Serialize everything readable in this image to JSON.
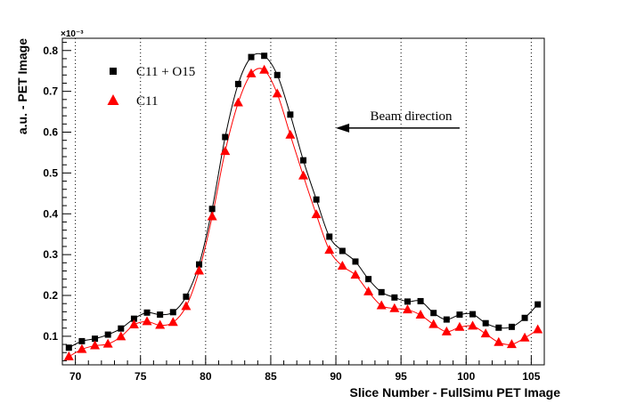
{
  "chart_data": {
    "type": "scatter",
    "title": "",
    "xlabel": "Slice Number - FullSimu PET Image",
    "ylabel": "a.u. - PET Image",
    "y_exponent_label": "×10⁻³",
    "y_scale_factor": 0.001,
    "xlim": [
      69,
      106
    ],
    "ylim": [
      0.03,
      0.83
    ],
    "x_ticks": [
      70,
      75,
      80,
      85,
      90,
      95,
      100,
      105
    ],
    "y_ticks": [
      0.1,
      0.2,
      0.3,
      0.4,
      0.5,
      0.6,
      0.7,
      0.8
    ],
    "y_tick_labels": [
      "0.1",
      "0.2",
      "0.3",
      "0.4",
      "0.5",
      "0.6",
      "0.7",
      "0.8"
    ],
    "grid": "vertical-dotted",
    "legend_position": "top-left",
    "x": [
      69.5,
      70.5,
      71.5,
      72.5,
      73.5,
      74.5,
      75.5,
      76.5,
      77.5,
      78.5,
      79.5,
      80.5,
      81.5,
      82.5,
      83.5,
      84.5,
      85.5,
      86.5,
      87.5,
      88.5,
      89.5,
      90.5,
      91.5,
      92.5,
      93.5,
      94.5,
      95.5,
      96.5,
      97.5,
      98.5,
      99.5,
      100.5,
      101.5,
      102.5,
      103.5,
      104.5,
      105.5
    ],
    "series": [
      {
        "name": "C11 + O15",
        "color": "#000000",
        "marker": "square",
        "values": [
          0.072,
          0.088,
          0.094,
          0.104,
          0.119,
          0.143,
          0.158,
          0.153,
          0.159,
          0.197,
          0.276,
          0.412,
          0.588,
          0.718,
          0.784,
          0.787,
          0.74,
          0.643,
          0.531,
          0.435,
          0.344,
          0.309,
          0.283,
          0.24,
          0.208,
          0.195,
          0.185,
          0.186,
          0.157,
          0.141,
          0.153,
          0.154,
          0.132,
          0.121,
          0.123,
          0.145,
          0.178
        ]
      },
      {
        "name": "C11",
        "color": "#ff0000",
        "marker": "triangle",
        "values": [
          0.05,
          0.068,
          0.077,
          0.081,
          0.099,
          0.128,
          0.136,
          0.127,
          0.134,
          0.173,
          0.26,
          0.393,
          0.553,
          0.672,
          0.743,
          0.752,
          0.694,
          0.593,
          0.493,
          0.398,
          0.311,
          0.272,
          0.25,
          0.209,
          0.175,
          0.168,
          0.165,
          0.152,
          0.129,
          0.111,
          0.122,
          0.125,
          0.106,
          0.085,
          0.08,
          0.096,
          0.116
        ]
      }
    ],
    "annotations": [
      {
        "text": "Beam direction",
        "type": "arrow",
        "arrow_points": "left",
        "arrow_x_range": [
          90,
          99.5
        ],
        "arrow_y": 0.61
      }
    ]
  }
}
